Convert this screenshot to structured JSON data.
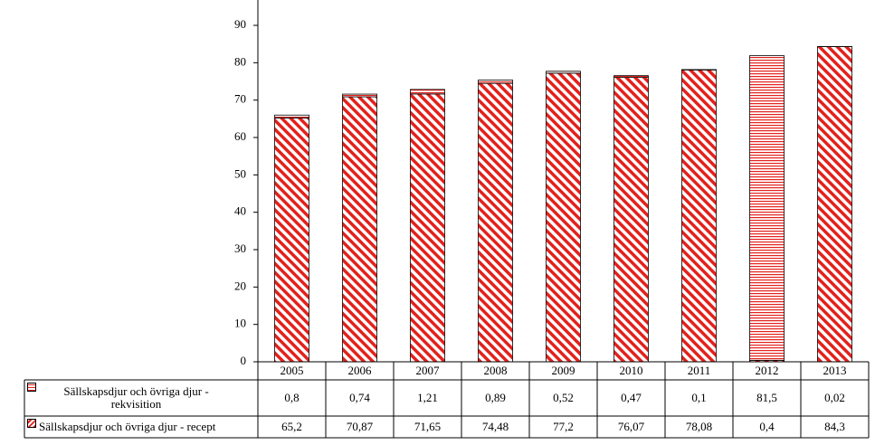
{
  "chart_data": {
    "type": "stacked-bar",
    "categories": [
      "2005",
      "2006",
      "2007",
      "2008",
      "2009",
      "2010",
      "2011",
      "2012",
      "2013"
    ],
    "series": [
      {
        "name": "Sällskapsdjur och övriga djur - rekvisition",
        "color": "#e3211c",
        "hatch": "horizontal",
        "values": [
          0.8,
          0.74,
          1.21,
          0.89,
          0.52,
          0.47,
          0.1,
          81.5,
          0.02
        ],
        "value_labels": [
          "0,8",
          "0,74",
          "1,21",
          "0,89",
          "0,52",
          "0,47",
          "0,1",
          "81,5",
          "0,02"
        ]
      },
      {
        "name": "Sällskapsdjur och övriga djur - recept",
        "color": "#e3211c",
        "hatch": "diagonal",
        "values": [
          65.2,
          70.87,
          71.65,
          74.48,
          77.2,
          76.07,
          78.08,
          0.4,
          84.3
        ],
        "value_labels": [
          "65,2",
          "70,87",
          "71,65",
          "74,48",
          "77,2",
          "76,07",
          "78,08",
          "0,4",
          "84,3"
        ]
      }
    ],
    "ylim": [
      0,
      100
    ],
    "yticks": [
      0,
      10,
      20,
      30,
      40,
      50,
      60,
      70,
      80,
      90
    ]
  }
}
